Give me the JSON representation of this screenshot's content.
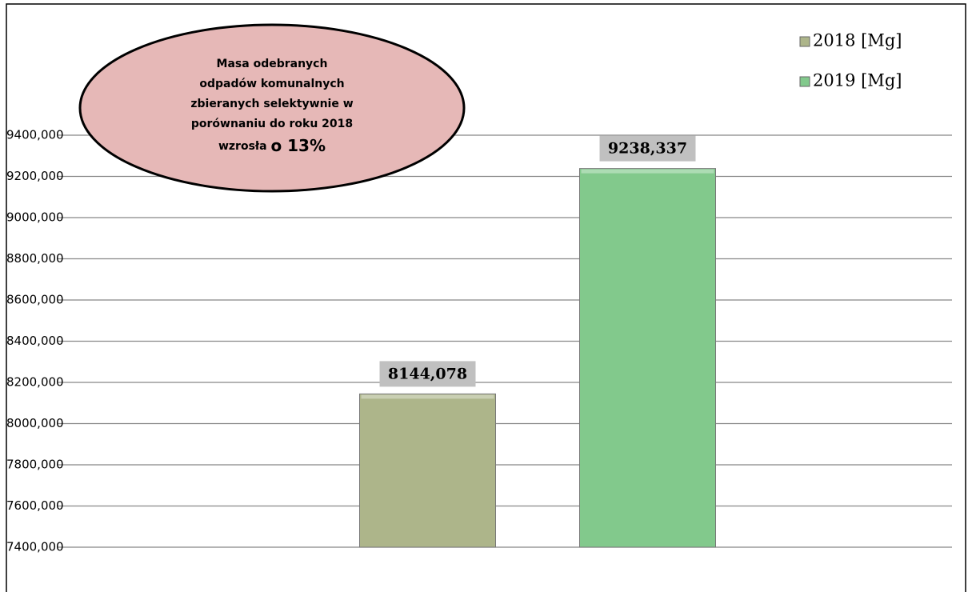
{
  "chart_data": {
    "type": "bar",
    "annotation": [
      "Masa odebranych",
      "odpadów komunalnych",
      "zbieranych selektywnie w",
      "porównaniu do roku 2018",
      "wzrosła",
      "o 13%"
    ],
    "categories": [
      null
    ],
    "series": [
      {
        "name": "2018 [Mg]",
        "color": "#adb58a",
        "values": [
          8144.078
        ],
        "value_labels": [
          "8144,078"
        ]
      },
      {
        "name": "2019 [Mg]",
        "color": "#82c98c",
        "values": [
          9238.337
        ],
        "value_labels": [
          "9238,337"
        ]
      }
    ],
    "ylim": [
      7400,
      9400
    ],
    "yticks": [
      {
        "value": 7400,
        "label": "7400,000"
      },
      {
        "value": 7600,
        "label": "7600,000"
      },
      {
        "value": 7800,
        "label": "7800,000"
      },
      {
        "value": 8000,
        "label": "8000,000"
      },
      {
        "value": 8200,
        "label": "8200,000"
      },
      {
        "value": 8400,
        "label": "8400,000"
      },
      {
        "value": 8600,
        "label": "8600,000"
      },
      {
        "value": 8800,
        "label": "8800,000"
      },
      {
        "value": 9000,
        "label": "9000,000"
      },
      {
        "value": 9200,
        "label": "9200,000"
      },
      {
        "value": 9400,
        "label": "9400,000"
      }
    ],
    "grid": true,
    "legend": "top-right"
  }
}
